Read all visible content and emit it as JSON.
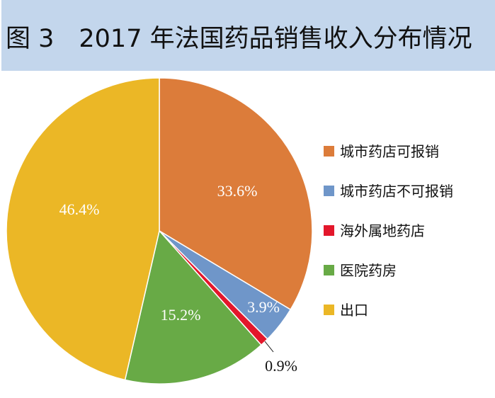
{
  "chart_data": {
    "type": "pie",
    "title": "图 3　2017 年法国药品销售收入分布情况",
    "categories": [
      "城市药店可报销",
      "城市药店不可报销",
      "海外属地药店",
      "医院药房",
      "出口"
    ],
    "values": [
      33.6,
      3.9,
      0.9,
      15.2,
      46.4
    ],
    "labels": [
      "33.6%",
      "3.9%",
      "0.9%",
      "15.2%",
      "46.4%"
    ],
    "colors": [
      "#DC7C3A",
      "#6F96C9",
      "#E3172B",
      "#68AA46",
      "#EBB726"
    ],
    "start_angle": "12 o'clock",
    "direction": "clockwise",
    "legend_placement": "right"
  }
}
